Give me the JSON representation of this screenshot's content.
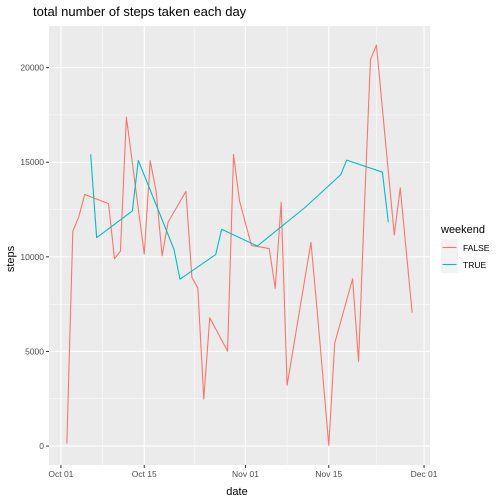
{
  "chart_data": {
    "type": "line",
    "title": "total number of steps taken each day",
    "xlabel": "date",
    "ylabel": "steps",
    "x_tick_labels": [
      "Oct 01",
      "Oct 15",
      "Nov 01",
      "Nov 15",
      "Dec 01"
    ],
    "x_ticks": [
      "2012-10-01",
      "2012-10-15",
      "2012-11-01",
      "2012-11-15",
      "2012-12-01"
    ],
    "xlim": [
      "2012-09-29",
      "2012-12-02"
    ],
    "y_ticks": [
      0,
      5000,
      10000,
      15000,
      20000
    ],
    "y_tick_labels": [
      "0",
      "5000",
      "10000",
      "15000",
      "20000"
    ],
    "ylim": [
      -1000,
      22200
    ],
    "grid": true,
    "legend": {
      "title": "weekend",
      "placement": "right"
    },
    "series": [
      {
        "name": "FALSE",
        "color": "#F8766D",
        "points": [
          [
            "2012-10-02",
            126
          ],
          [
            "2012-10-03",
            11352
          ],
          [
            "2012-10-04",
            12116
          ],
          [
            "2012-10-05",
            13294
          ],
          [
            "2012-10-09",
            12811
          ],
          [
            "2012-10-10",
            9900
          ],
          [
            "2012-10-11",
            10304
          ],
          [
            "2012-10-12",
            17382
          ],
          [
            "2012-10-15",
            10139
          ],
          [
            "2012-10-16",
            15084
          ],
          [
            "2012-10-17",
            13452
          ],
          [
            "2012-10-18",
            10056
          ],
          [
            "2012-10-19",
            11829
          ],
          [
            "2012-10-22",
            13460
          ],
          [
            "2012-10-23",
            8918
          ],
          [
            "2012-10-24",
            8355
          ],
          [
            "2012-10-25",
            2492
          ],
          [
            "2012-10-26",
            6778
          ],
          [
            "2012-10-29",
            5018
          ],
          [
            "2012-10-30",
            15414
          ],
          [
            "2012-10-31",
            12962
          ],
          [
            "2012-11-02",
            10600
          ],
          [
            "2012-11-05",
            10439
          ],
          [
            "2012-11-06",
            8334
          ],
          [
            "2012-11-07",
            12883
          ],
          [
            "2012-11-08",
            3219
          ],
          [
            "2012-11-12",
            10765
          ],
          [
            "2012-11-13",
            7336
          ],
          [
            "2012-11-15",
            41
          ],
          [
            "2012-11-16",
            5441
          ],
          [
            "2012-11-19",
            8841
          ],
          [
            "2012-11-20",
            4472
          ],
          [
            "2012-11-21",
            12787
          ],
          [
            "2012-11-22",
            20427
          ],
          [
            "2012-11-23",
            21194
          ],
          [
            "2012-11-26",
            11162
          ],
          [
            "2012-11-27",
            13646
          ],
          [
            "2012-11-29",
            7047
          ]
        ]
      },
      {
        "name": "TRUE",
        "color": "#00BFC4",
        "points": [
          [
            "2012-10-06",
            15420
          ],
          [
            "2012-10-07",
            11015
          ],
          [
            "2012-10-13",
            12426
          ],
          [
            "2012-10-14",
            15098
          ],
          [
            "2012-10-20",
            10395
          ],
          [
            "2012-10-21",
            8821
          ],
          [
            "2012-10-27",
            10119
          ],
          [
            "2012-10-28",
            11458
          ],
          [
            "2012-11-03",
            10571
          ],
          [
            "2012-11-11",
            12608
          ],
          [
            "2012-11-17",
            14339
          ],
          [
            "2012-11-18",
            15110
          ],
          [
            "2012-11-24",
            14478
          ],
          [
            "2012-11-25",
            11834
          ]
        ]
      }
    ]
  }
}
